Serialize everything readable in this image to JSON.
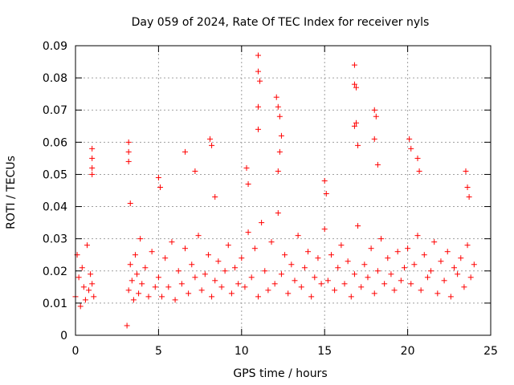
{
  "chart_data": {
    "type": "scatter",
    "title": "Day 059 of 2024, Rate Of TEC Index for receiver nyls",
    "xlabel": "GPS time / hours",
    "ylabel": "ROTI / TECUs",
    "xlim": [
      0,
      25
    ],
    "ylim": [
      0,
      0.09
    ],
    "xticks": [
      "0",
      "5",
      "10",
      "15",
      "20",
      "25"
    ],
    "yticks": [
      "0",
      "0.01",
      "0.02",
      "0.03",
      "0.04",
      "0.05",
      "0.06",
      "0.07",
      "0.08",
      "0.09"
    ],
    "grid": true,
    "marker": "+",
    "color": "#ff0000",
    "series": [
      {
        "name": "ROTI",
        "x": [
          0.0,
          0.1,
          0.2,
          0.3,
          0.4,
          0.5,
          0.6,
          0.7,
          0.8,
          0.9,
          1.0,
          1.1,
          1.0,
          1.0,
          1.0,
          1.0,
          3.1,
          3.2,
          3.3,
          3.4,
          3.5,
          3.6,
          3.7,
          3.8,
          3.9,
          4.0,
          4.2,
          4.4,
          4.6,
          4.8,
          3.2,
          3.2,
          3.2,
          3.3,
          5.0,
          5.2,
          5.4,
          5.6,
          5.8,
          6.0,
          6.2,
          6.4,
          6.6,
          6.8,
          7.0,
          7.2,
          7.4,
          7.6,
          7.8,
          8.0,
          8.2,
          8.4,
          8.6,
          8.8,
          9.0,
          9.2,
          9.4,
          9.6,
          9.8,
          5.0,
          5.1,
          6.6,
          7.2,
          8.1,
          8.2,
          8.4,
          10.0,
          10.2,
          10.4,
          10.6,
          10.8,
          11.0,
          11.2,
          11.4,
          11.6,
          11.8,
          12.0,
          12.2,
          12.4,
          12.6,
          12.8,
          13.0,
          13.2,
          13.4,
          13.6,
          13.8,
          14.0,
          14.2,
          14.4,
          14.6,
          14.8,
          10.3,
          10.4,
          11.0,
          11.0,
          11.1,
          11.0,
          11.0,
          12.1,
          12.2,
          12.3,
          12.4,
          12.3,
          12.2,
          15.0,
          15.2,
          15.4,
          15.6,
          15.8,
          16.0,
          16.2,
          16.4,
          16.6,
          16.8,
          17.0,
          17.2,
          17.4,
          17.6,
          17.8,
          18.0,
          18.2,
          18.4,
          18.6,
          18.8,
          19.0,
          19.2,
          19.4,
          19.6,
          19.8,
          15.0,
          15.1,
          16.8,
          16.8,
          16.9,
          16.9,
          16.8,
          17.0,
          18.0,
          18.1,
          18.0,
          18.2,
          20.0,
          20.2,
          20.4,
          20.6,
          20.8,
          21.0,
          21.2,
          21.4,
          21.6,
          21.8,
          22.0,
          22.2,
          22.4,
          22.6,
          22.8,
          23.0,
          23.2,
          23.4,
          23.6,
          23.8,
          24.0,
          20.1,
          20.2,
          20.6,
          20.7,
          23.5,
          23.6,
          23.7
        ],
        "y": [
          0.012,
          0.025,
          0.018,
          0.009,
          0.021,
          0.015,
          0.011,
          0.028,
          0.014,
          0.019,
          0.016,
          0.012,
          0.058,
          0.055,
          0.052,
          0.05,
          0.003,
          0.014,
          0.022,
          0.017,
          0.011,
          0.025,
          0.019,
          0.013,
          0.03,
          0.016,
          0.021,
          0.012,
          0.026,
          0.015,
          0.06,
          0.057,
          0.054,
          0.041,
          0.018,
          0.012,
          0.024,
          0.015,
          0.029,
          0.011,
          0.02,
          0.016,
          0.027,
          0.013,
          0.022,
          0.018,
          0.031,
          0.014,
          0.019,
          0.025,
          0.012,
          0.017,
          0.023,
          0.015,
          0.02,
          0.028,
          0.013,
          0.021,
          0.016,
          0.049,
          0.046,
          0.057,
          0.051,
          0.061,
          0.059,
          0.043,
          0.024,
          0.015,
          0.032,
          0.018,
          0.027,
          0.012,
          0.035,
          0.02,
          0.014,
          0.029,
          0.016,
          0.038,
          0.019,
          0.025,
          0.013,
          0.022,
          0.017,
          0.031,
          0.015,
          0.021,
          0.026,
          0.012,
          0.018,
          0.024,
          0.016,
          0.052,
          0.047,
          0.087,
          0.082,
          0.079,
          0.071,
          0.064,
          0.074,
          0.071,
          0.068,
          0.062,
          0.057,
          0.051,
          0.033,
          0.017,
          0.025,
          0.014,
          0.021,
          0.028,
          0.016,
          0.023,
          0.012,
          0.019,
          0.034,
          0.015,
          0.022,
          0.018,
          0.027,
          0.013,
          0.02,
          0.03,
          0.016,
          0.024,
          0.019,
          0.014,
          0.026,
          0.017,
          0.021,
          0.048,
          0.044,
          0.084,
          0.078,
          0.077,
          0.066,
          0.065,
          0.059,
          0.07,
          0.068,
          0.061,
          0.053,
          0.027,
          0.016,
          0.022,
          0.031,
          0.014,
          0.025,
          0.018,
          0.02,
          0.029,
          0.013,
          0.023,
          0.017,
          0.026,
          0.012,
          0.021,
          0.019,
          0.024,
          0.015,
          0.028,
          0.018,
          0.022,
          0.061,
          0.058,
          0.055,
          0.051,
          0.051,
          0.046,
          0.043
        ]
      }
    ]
  }
}
